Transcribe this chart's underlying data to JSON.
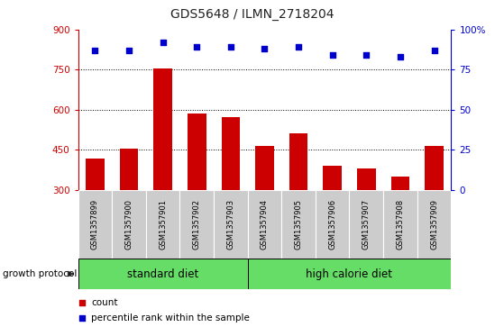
{
  "title": "GDS5648 / ILMN_2718204",
  "samples": [
    "GSM1357899",
    "GSM1357900",
    "GSM1357901",
    "GSM1357902",
    "GSM1357903",
    "GSM1357904",
    "GSM1357905",
    "GSM1357906",
    "GSM1357907",
    "GSM1357908",
    "GSM1357909"
  ],
  "counts": [
    415,
    455,
    755,
    585,
    573,
    465,
    510,
    390,
    380,
    350,
    465
  ],
  "percentiles": [
    87,
    87,
    92,
    89,
    89,
    88,
    89,
    84,
    84,
    83,
    87
  ],
  "bar_color": "#cc0000",
  "dot_color": "#0000cc",
  "ylim_left": [
    300,
    900
  ],
  "ylim_right": [
    0,
    100
  ],
  "yticks_left": [
    300,
    450,
    600,
    750,
    900
  ],
  "yticks_right": [
    0,
    25,
    50,
    75,
    100
  ],
  "yticklabels_right": [
    "0",
    "25",
    "50",
    "75",
    "100%"
  ],
  "grid_values": [
    450,
    600,
    750
  ],
  "standard_diet_count": 5,
  "high_calorie_count": 6,
  "standard_diet_label": "standard diet",
  "high_calorie_label": "high calorie diet",
  "group_label": "growth protocol",
  "legend_count": "count",
  "legend_percentile": "percentile rank within the sample",
  "left_axis_color": "#cc0000",
  "right_axis_color": "#0000cc",
  "bar_width": 0.55,
  "xticklabel_bg": "#cccccc",
  "green_bg": "#66dd66"
}
